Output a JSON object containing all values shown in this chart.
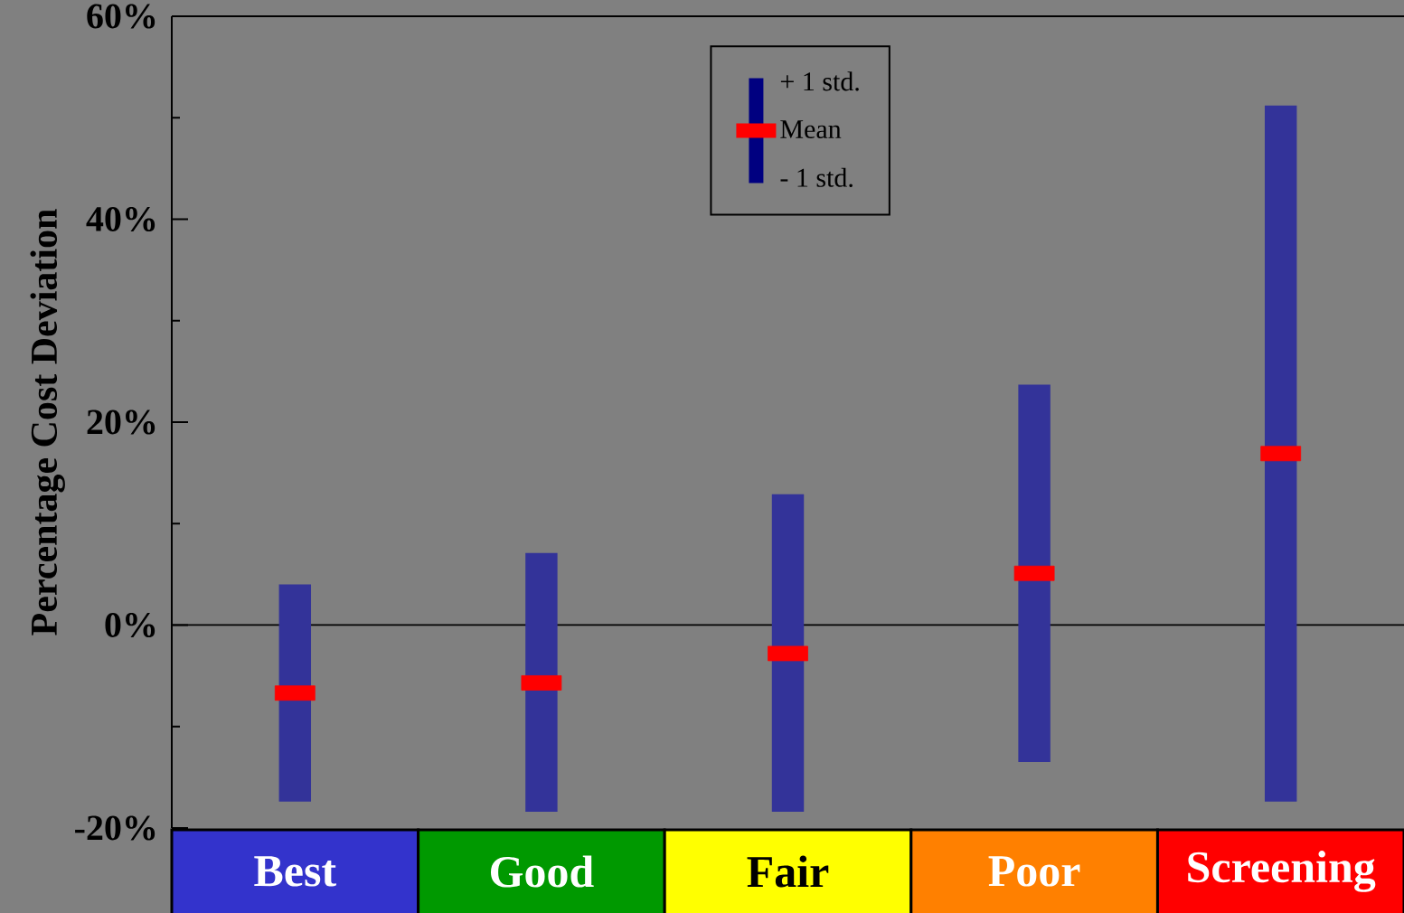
{
  "chart_data": {
    "type": "bar",
    "ylabel": "Percentage Cost Deviation",
    "categories": [
      "Best",
      "Good",
      "Fair",
      "Poor",
      "Screening"
    ],
    "series": [
      {
        "color": "#333399",
        "base": [
          -17.4,
          -18.4,
          -18.4,
          -13.5,
          -17.4
        ],
        "values": [
          21.4,
          25.5,
          31.3,
          37.2,
          68.6
        ]
      },
      {
        "type": "scatter",
        "name": "Mean",
        "color": "#ff0000",
        "marker": "square",
        "values": [
          -6.7,
          -5.7,
          -2.8,
          5.1,
          16.9
        ]
      }
    ],
    "annotations": [
      "+ 1 std.",
      "- 1 std."
    ],
    "ref_lines": [
      {
        "axis": "y",
        "value": 0
      }
    ],
    "ylim": [
      -20,
      60
    ],
    "yticks": [
      {
        "value": -20,
        "label": "-20%"
      },
      {
        "value": -10,
        "label": null
      },
      {
        "value": 0,
        "label": "0%"
      },
      {
        "value": 10,
        "label": null
      },
      {
        "value": 20,
        "label": "20%"
      },
      {
        "value": 30,
        "label": null
      },
      {
        "value": 40,
        "label": "40%"
      },
      {
        "value": 50,
        "label": null
      },
      {
        "value": 60,
        "label": "60%"
      }
    ],
    "legend": "top"
  }
}
